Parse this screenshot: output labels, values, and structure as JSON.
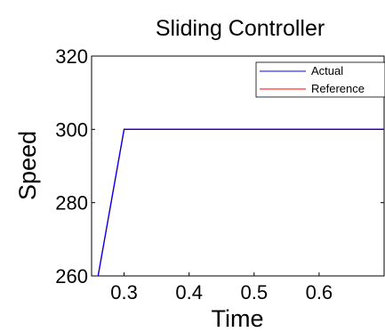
{
  "chart_data": {
    "type": "line",
    "title": "Sliding Controller",
    "xlabel": "Time",
    "ylabel": "Speed",
    "xlim": [
      0.25,
      0.7
    ],
    "ylim": [
      260,
      320
    ],
    "x_ticks": [
      {
        "value": 0.3,
        "label": "0.3"
      },
      {
        "value": 0.4,
        "label": "0.4"
      },
      {
        "value": 0.5,
        "label": "0.5"
      },
      {
        "value": 0.6,
        "label": "0.6"
      }
    ],
    "y_ticks": [
      {
        "value": 260,
        "label": "260"
      },
      {
        "value": 280,
        "label": "280"
      },
      {
        "value": 300,
        "label": "300"
      },
      {
        "value": 320,
        "label": "320"
      }
    ],
    "grid": false,
    "legend_position": "top-right",
    "series": [
      {
        "name": "Actual",
        "color": "#0000ff",
        "x": [
          0.25,
          0.3,
          0.7
        ],
        "y": [
          250,
          300,
          300
        ]
      },
      {
        "name": "Reference",
        "color": "#ff0000",
        "x": [
          0.25,
          0.3,
          0.7
        ],
        "y": [
          250,
          300,
          300
        ]
      }
    ]
  }
}
